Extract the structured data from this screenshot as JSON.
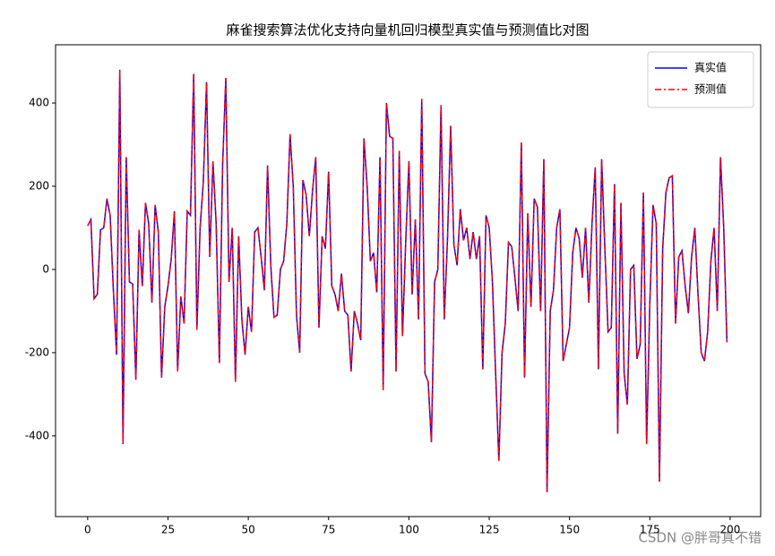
{
  "chart_data": {
    "type": "line",
    "title": "麻雀搜索算法优化支持向量机回归模型真实值与预测值比对图",
    "watermark": "CSDN @胖哥真不错",
    "x": [
      0,
      1,
      2,
      3,
      4,
      5,
      6,
      7,
      8,
      9,
      10,
      11,
      12,
      13,
      14,
      15,
      16,
      17,
      18,
      19,
      20,
      21,
      22,
      23,
      24,
      25,
      26,
      27,
      28,
      29,
      30,
      31,
      32,
      33,
      34,
      35,
      36,
      37,
      38,
      39,
      40,
      41,
      42,
      43,
      44,
      45,
      46,
      47,
      48,
      49,
      50,
      51,
      52,
      53,
      54,
      55,
      56,
      57,
      58,
      59,
      60,
      61,
      62,
      63,
      64,
      65,
      66,
      67,
      68,
      69,
      70,
      71,
      72,
      73,
      74,
      75,
      76,
      77,
      78,
      79,
      80,
      81,
      82,
      83,
      84,
      85,
      86,
      87,
      88,
      89,
      90,
      91,
      92,
      93,
      94,
      95,
      96,
      97,
      98,
      99,
      100,
      101,
      102,
      103,
      104,
      105,
      106,
      107,
      108,
      109,
      110,
      111,
      112,
      113,
      114,
      115,
      116,
      117,
      118,
      119,
      120,
      121,
      122,
      123,
      124,
      125,
      126,
      127,
      128,
      129,
      130,
      131,
      132,
      133,
      134,
      135,
      136,
      137,
      138,
      139,
      140,
      141,
      142,
      143,
      144,
      145,
      146,
      147,
      148,
      149,
      150,
      151,
      152,
      153,
      154,
      155,
      156,
      157,
      158,
      159,
      160,
      161,
      162,
      163,
      164,
      165,
      166,
      167,
      168,
      169,
      170,
      171,
      172,
      173,
      174,
      175,
      176,
      177,
      178,
      179,
      180,
      181,
      182,
      183,
      184,
      185,
      186,
      187,
      188,
      189,
      190,
      191,
      192,
      193,
      194,
      195,
      196,
      197,
      198,
      199
    ],
    "series": [
      {
        "name": "真实值",
        "color": "#0000ff",
        "dash": "solid",
        "values": [
          105,
          120,
          -70,
          -60,
          95,
          100,
          170,
          130,
          -50,
          -205,
          480,
          -420,
          270,
          -30,
          -35,
          -265,
          95,
          -40,
          160,
          110,
          -80,
          155,
          90,
          -260,
          -90,
          -40,
          25,
          140,
          -245,
          -65,
          -130,
          140,
          130,
          470,
          -145,
          100,
          210,
          450,
          30,
          260,
          110,
          -225,
          250,
          460,
          -30,
          100,
          -270,
          80,
          -120,
          -205,
          -90,
          -150,
          90,
          100,
          30,
          -50,
          250,
          10,
          -115,
          -110,
          0,
          20,
          110,
          325,
          200,
          -110,
          -200,
          215,
          180,
          80,
          190,
          270,
          -140,
          80,
          50,
          235,
          -40,
          -60,
          -100,
          -10,
          -100,
          -110,
          -245,
          -100,
          -130,
          -170,
          315,
          200,
          20,
          40,
          -55,
          270,
          -290,
          400,
          320,
          315,
          -245,
          285,
          -160,
          65,
          260,
          -60,
          120,
          -120,
          410,
          -250,
          -270,
          -415,
          -30,
          0,
          395,
          -120,
          70,
          345,
          60,
          10,
          145,
          70,
          100,
          25,
          90,
          25,
          80,
          -240,
          130,
          100,
          -30,
          -250,
          -460,
          -200,
          -130,
          65,
          55,
          -20,
          -100,
          305,
          -260,
          135,
          -90,
          170,
          150,
          -100,
          265,
          -535,
          -100,
          -50,
          100,
          145,
          -220,
          -180,
          -140,
          40,
          100,
          75,
          -20,
          100,
          -80,
          110,
          245,
          -240,
          265,
          50,
          -150,
          -140,
          205,
          -395,
          160,
          -250,
          -325,
          0,
          10,
          -215,
          -180,
          185,
          -420,
          -80,
          155,
          110,
          -510,
          50,
          185,
          220,
          225,
          -130,
          30,
          45,
          -40,
          -105,
          30,
          100,
          -60,
          -200,
          -220,
          -150,
          20,
          100,
          -100,
          270,
          100,
          -175
        ]
      },
      {
        "name": "预测值",
        "color": "#ff0000",
        "dash": "dashdot",
        "values": [
          105,
          120,
          -70,
          -60,
          95,
          100,
          170,
          130,
          -50,
          -205,
          480,
          -420,
          270,
          -30,
          -35,
          -265,
          95,
          -40,
          160,
          110,
          -80,
          155,
          90,
          -260,
          -90,
          -40,
          25,
          140,
          -245,
          -65,
          -130,
          140,
          130,
          470,
          -145,
          100,
          210,
          450,
          30,
          260,
          110,
          -225,
          250,
          460,
          -30,
          100,
          -270,
          80,
          -120,
          -205,
          -90,
          -150,
          90,
          100,
          30,
          -50,
          250,
          10,
          -115,
          -110,
          0,
          20,
          110,
          325,
          200,
          -110,
          -200,
          215,
          180,
          80,
          190,
          270,
          -140,
          80,
          50,
          235,
          -40,
          -60,
          -100,
          -10,
          -100,
          -110,
          -245,
          -100,
          -130,
          -170,
          315,
          200,
          20,
          40,
          -55,
          270,
          -290,
          400,
          320,
          315,
          -245,
          285,
          -160,
          65,
          260,
          -60,
          120,
          -120,
          410,
          -250,
          -270,
          -415,
          -30,
          0,
          395,
          -120,
          70,
          345,
          60,
          10,
          145,
          70,
          100,
          25,
          90,
          25,
          80,
          -240,
          130,
          100,
          -30,
          -250,
          -460,
          -200,
          -130,
          65,
          55,
          -20,
          -100,
          305,
          -260,
          135,
          -90,
          170,
          150,
          -100,
          265,
          -535,
          -100,
          -50,
          100,
          145,
          -220,
          -180,
          -140,
          40,
          100,
          75,
          -20,
          100,
          -80,
          110,
          245,
          -240,
          265,
          50,
          -150,
          -140,
          205,
          -395,
          160,
          -250,
          -325,
          0,
          10,
          -215,
          -180,
          185,
          -420,
          -80,
          155,
          110,
          -510,
          50,
          185,
          220,
          225,
          -130,
          30,
          45,
          -40,
          -105,
          30,
          100,
          -60,
          -200,
          -220,
          -150,
          20,
          100,
          -100,
          270,
          100,
          -175
        ]
      }
    ],
    "xlim": [
      -10,
      209.5
    ],
    "ylim": [
      -594,
      540
    ],
    "xticks": [
      0,
      25,
      50,
      75,
      100,
      125,
      150,
      175,
      200
    ],
    "yticks": [
      -400,
      -200,
      0,
      200,
      400
    ],
    "legend": "upper right"
  }
}
